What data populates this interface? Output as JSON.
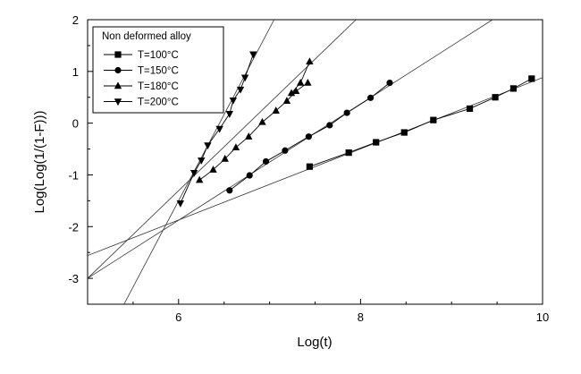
{
  "chart_data": {
    "type": "scatter",
    "xlabel": "Log(t)",
    "ylabel": "Log(Log(1/(1-F)))",
    "xlim": [
      5,
      10
    ],
    "ylim": [
      -3.5,
      2
    ],
    "xticks": [
      6,
      8,
      10
    ],
    "yticks": [
      -3,
      -2,
      -1,
      0,
      1,
      2
    ],
    "grid": false,
    "legend_title": "Non deformed alloy",
    "legend_position": "top-left",
    "series": [
      {
        "name": "T=100°C",
        "marker": "square",
        "x": [
          7.44,
          7.87,
          8.17,
          8.48,
          8.8,
          9.2,
          9.48,
          9.68,
          9.88
        ],
        "y": [
          -0.84,
          -0.57,
          -0.37,
          -0.18,
          0.06,
          0.28,
          0.5,
          0.67,
          0.86
        ],
        "fit": {
          "x": [
            5.0,
            10.0
          ],
          "y": [
            -2.56,
            0.88
          ]
        }
      },
      {
        "name": "T=150°C",
        "marker": "circle",
        "x": [
          6.56,
          6.78,
          6.96,
          7.17,
          7.43,
          7.66,
          7.85,
          8.11,
          8.32
        ],
        "y": [
          -1.3,
          -1.01,
          -0.74,
          -0.53,
          -0.26,
          -0.04,
          0.2,
          0.49,
          0.78
        ],
        "fit": {
          "x": [
            5.0,
            9.45
          ],
          "y": [
            -3.0,
            2.0
          ]
        }
      },
      {
        "name": "T=180°C",
        "marker": "triangle-up",
        "x": [
          6.23,
          6.38,
          6.51,
          6.63,
          6.77,
          6.92,
          7.07,
          7.19,
          7.29,
          7.42
        ],
        "y": [
          -1.1,
          -0.9,
          -0.69,
          -0.47,
          -0.26,
          0.02,
          0.24,
          0.43,
          0.62,
          0.78
        ],
        "x2": [
          7.24,
          7.34,
          7.44
        ],
        "y2": [
          0.58,
          0.78,
          1.19
        ],
        "fit": {
          "x": [
            5.0,
            7.95
          ],
          "y": [
            -3.0,
            2.0
          ]
        }
      },
      {
        "name": "T=200°C",
        "marker": "triangle-down",
        "x": [
          6.02,
          6.17,
          6.25,
          6.32,
          6.45,
          6.56,
          6.6,
          6.68,
          6.73,
          6.82
        ],
        "y": [
          -1.55,
          -0.96,
          -0.72,
          -0.43,
          -0.11,
          0.18,
          0.44,
          0.65,
          0.88,
          1.33
        ],
        "fit": {
          "x": [
            5.4,
            7.05
          ],
          "y": [
            -3.5,
            2.0
          ]
        }
      }
    ]
  }
}
